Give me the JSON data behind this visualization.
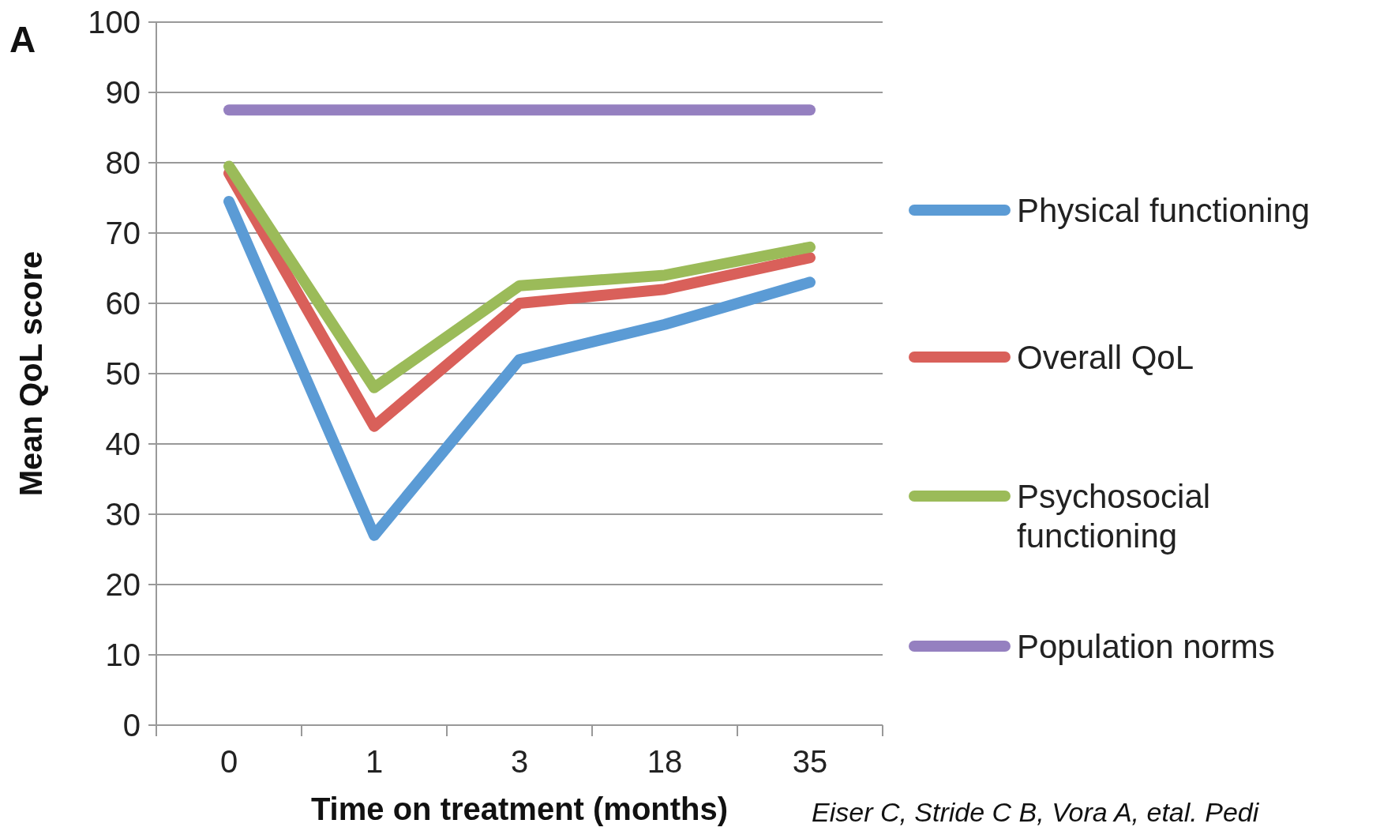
{
  "chart_data": {
    "type": "line",
    "xlabel": "Time on treatment (months)",
    "ylabel": "Mean QoL score",
    "categories": [
      "0",
      "1",
      "3",
      "18",
      "35"
    ],
    "series": [
      {
        "name": "Physical functioning",
        "color": "#5b9bd5",
        "values": [
          74.5,
          27,
          52,
          57,
          63
        ]
      },
      {
        "name": "Overall QoL",
        "color": "#d9605a",
        "values": [
          78.5,
          42.5,
          60,
          62,
          66.5
        ]
      },
      {
        "name": "Psychosocial functioning",
        "color": "#9bbb59",
        "values": [
          79.5,
          48,
          62.5,
          64,
          68
        ]
      },
      {
        "name": "Population norms",
        "color": "#9580c0",
        "values": [
          87.5,
          87.5,
          87.5,
          87.5,
          87.5
        ]
      }
    ],
    "ylim": [
      0,
      100
    ],
    "yticks": [
      0,
      10,
      20,
      30,
      40,
      50,
      60,
      70,
      80,
      90,
      100
    ],
    "grid": "y",
    "legend": "right",
    "marker": "none",
    "line_style": "solid",
    "annotations": [
      "A",
      "Eiser C, Stride C B, Vora A, etal. Pedi"
    ]
  }
}
